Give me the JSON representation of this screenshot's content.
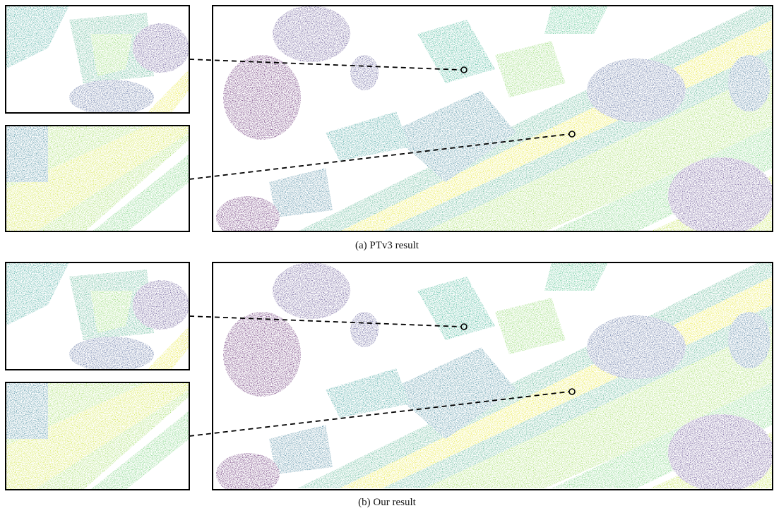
{
  "panels": [
    {
      "caption": "(a) PTv3 result"
    },
    {
      "caption": "(b) Our result"
    }
  ]
}
